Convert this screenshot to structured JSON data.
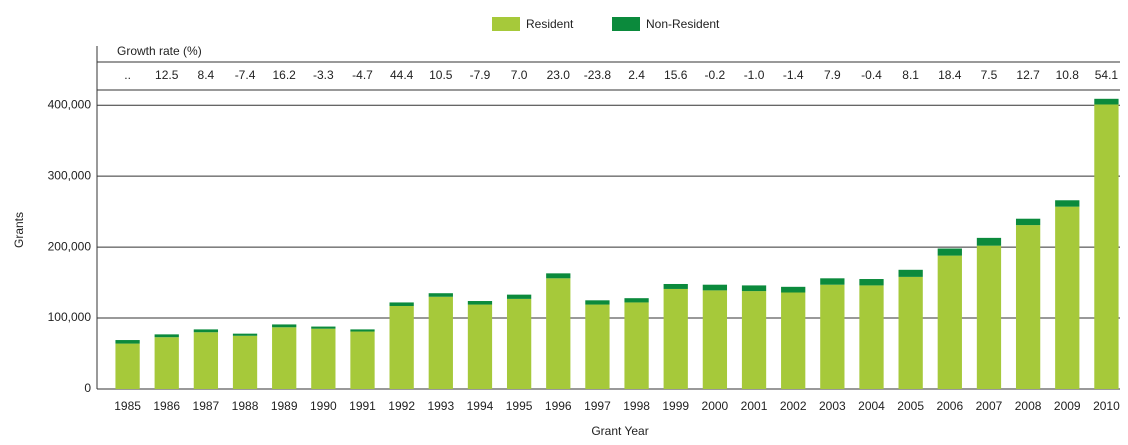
{
  "chart_data": {
    "type": "stacked_bar",
    "x_label": "Grant Year",
    "y_label": "Grants",
    "growth_rate_label": "Growth rate (%)",
    "growth_rates": [
      "..",
      "12.5",
      "8.4",
      "-7.4",
      "16.2",
      "-3.3",
      "-4.7",
      "44.4",
      "10.5",
      "-7.9",
      "7.0",
      "23.0",
      "-23.8",
      "2.4",
      "15.6",
      "-0.2",
      "-1.0",
      "-1.4",
      "7.9",
      "-0.4",
      "8.1",
      "18.4",
      "7.5",
      "12.7",
      "10.8",
      "54.1"
    ],
    "categories": [
      "1985",
      "1986",
      "1987",
      "1988",
      "1989",
      "1990",
      "1991",
      "1992",
      "1993",
      "1994",
      "1995",
      "1996",
      "1997",
      "1998",
      "1999",
      "2000",
      "2001",
      "2002",
      "2003",
      "2004",
      "2005",
      "2006",
      "2007",
      "2008",
      "2009",
      "2010"
    ],
    "series": [
      {
        "name": "Resident",
        "color": "#a6c93a",
        "values": [
          64000,
          73000,
          80000,
          75000,
          87000,
          85000,
          81000,
          117000,
          130000,
          119000,
          127000,
          156000,
          119000,
          122000,
          141000,
          139000,
          138000,
          136000,
          147000,
          146000,
          158000,
          188000,
          202000,
          231000,
          257000,
          401000
        ]
      },
      {
        "name": "Non-Resident",
        "color": "#0b8a3c",
        "values": [
          5000,
          4000,
          4000,
          3000,
          4000,
          3000,
          3000,
          5000,
          5000,
          5000,
          6000,
          7000,
          6000,
          6000,
          7000,
          8000,
          8000,
          8000,
          9000,
          9000,
          10000,
          10000,
          11000,
          9000,
          9000,
          8000
        ]
      }
    ],
    "ylim": [
      0,
      420000
    ],
    "yticks": [
      0,
      {
        "value": 100000,
        "label": "100,000"
      },
      {
        "value": 200000,
        "label": "200,000"
      },
      {
        "value": 300000,
        "label": "300,000"
      },
      {
        "value": 400000,
        "label": "400,000"
      }
    ],
    "grid": true
  }
}
